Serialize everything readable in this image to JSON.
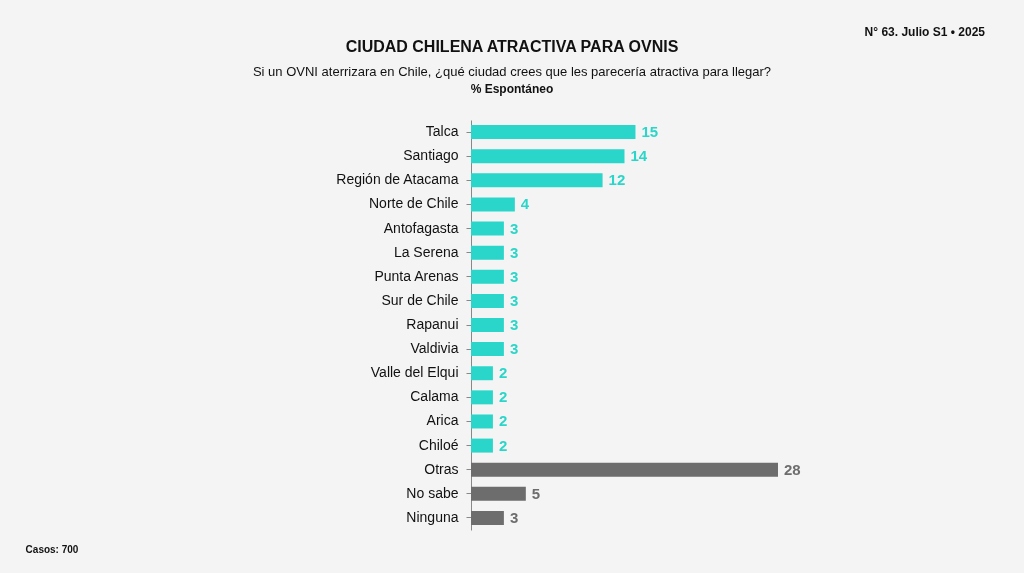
{
  "chart_data": {
    "type": "bar",
    "orientation": "horizontal",
    "title": "CIUDAD CHILENA ATRACTIVA PARA OVNIS",
    "subtitle": "Si un OVNI aterrizara en Chile, ¿qué ciudad crees que les parecería atractiva para llegar?",
    "annotations": [
      "% Espontáneo",
      "N° 63. Julio S1 • 2025",
      "Casos: 700"
    ],
    "categories": [
      "Talca",
      "Santiago",
      "Región de Atacama",
      "Norte de Chile",
      "Antofagasta",
      "La Serena",
      "Punta Arenas",
      "Sur de Chile",
      "Rapanui",
      "Valdivia",
      "Valle del Elqui",
      "Calama",
      "Arica",
      "Chiloé",
      "Otras",
      "No sabe",
      "Ninguna"
    ],
    "values": [
      15,
      14,
      12,
      4,
      3,
      3,
      3,
      3,
      3,
      3,
      2,
      2,
      2,
      2,
      28,
      5,
      3
    ],
    "colors": [
      "#2ad6c9",
      "#2ad6c9",
      "#2ad6c9",
      "#2ad6c9",
      "#2ad6c9",
      "#2ad6c9",
      "#2ad6c9",
      "#2ad6c9",
      "#2ad6c9",
      "#2ad6c9",
      "#2ad6c9",
      "#2ad6c9",
      "#2ad6c9",
      "#2ad6c9",
      "#6d6d6d",
      "#6d6d6d",
      "#6d6d6d"
    ],
    "data_labels": true
  }
}
